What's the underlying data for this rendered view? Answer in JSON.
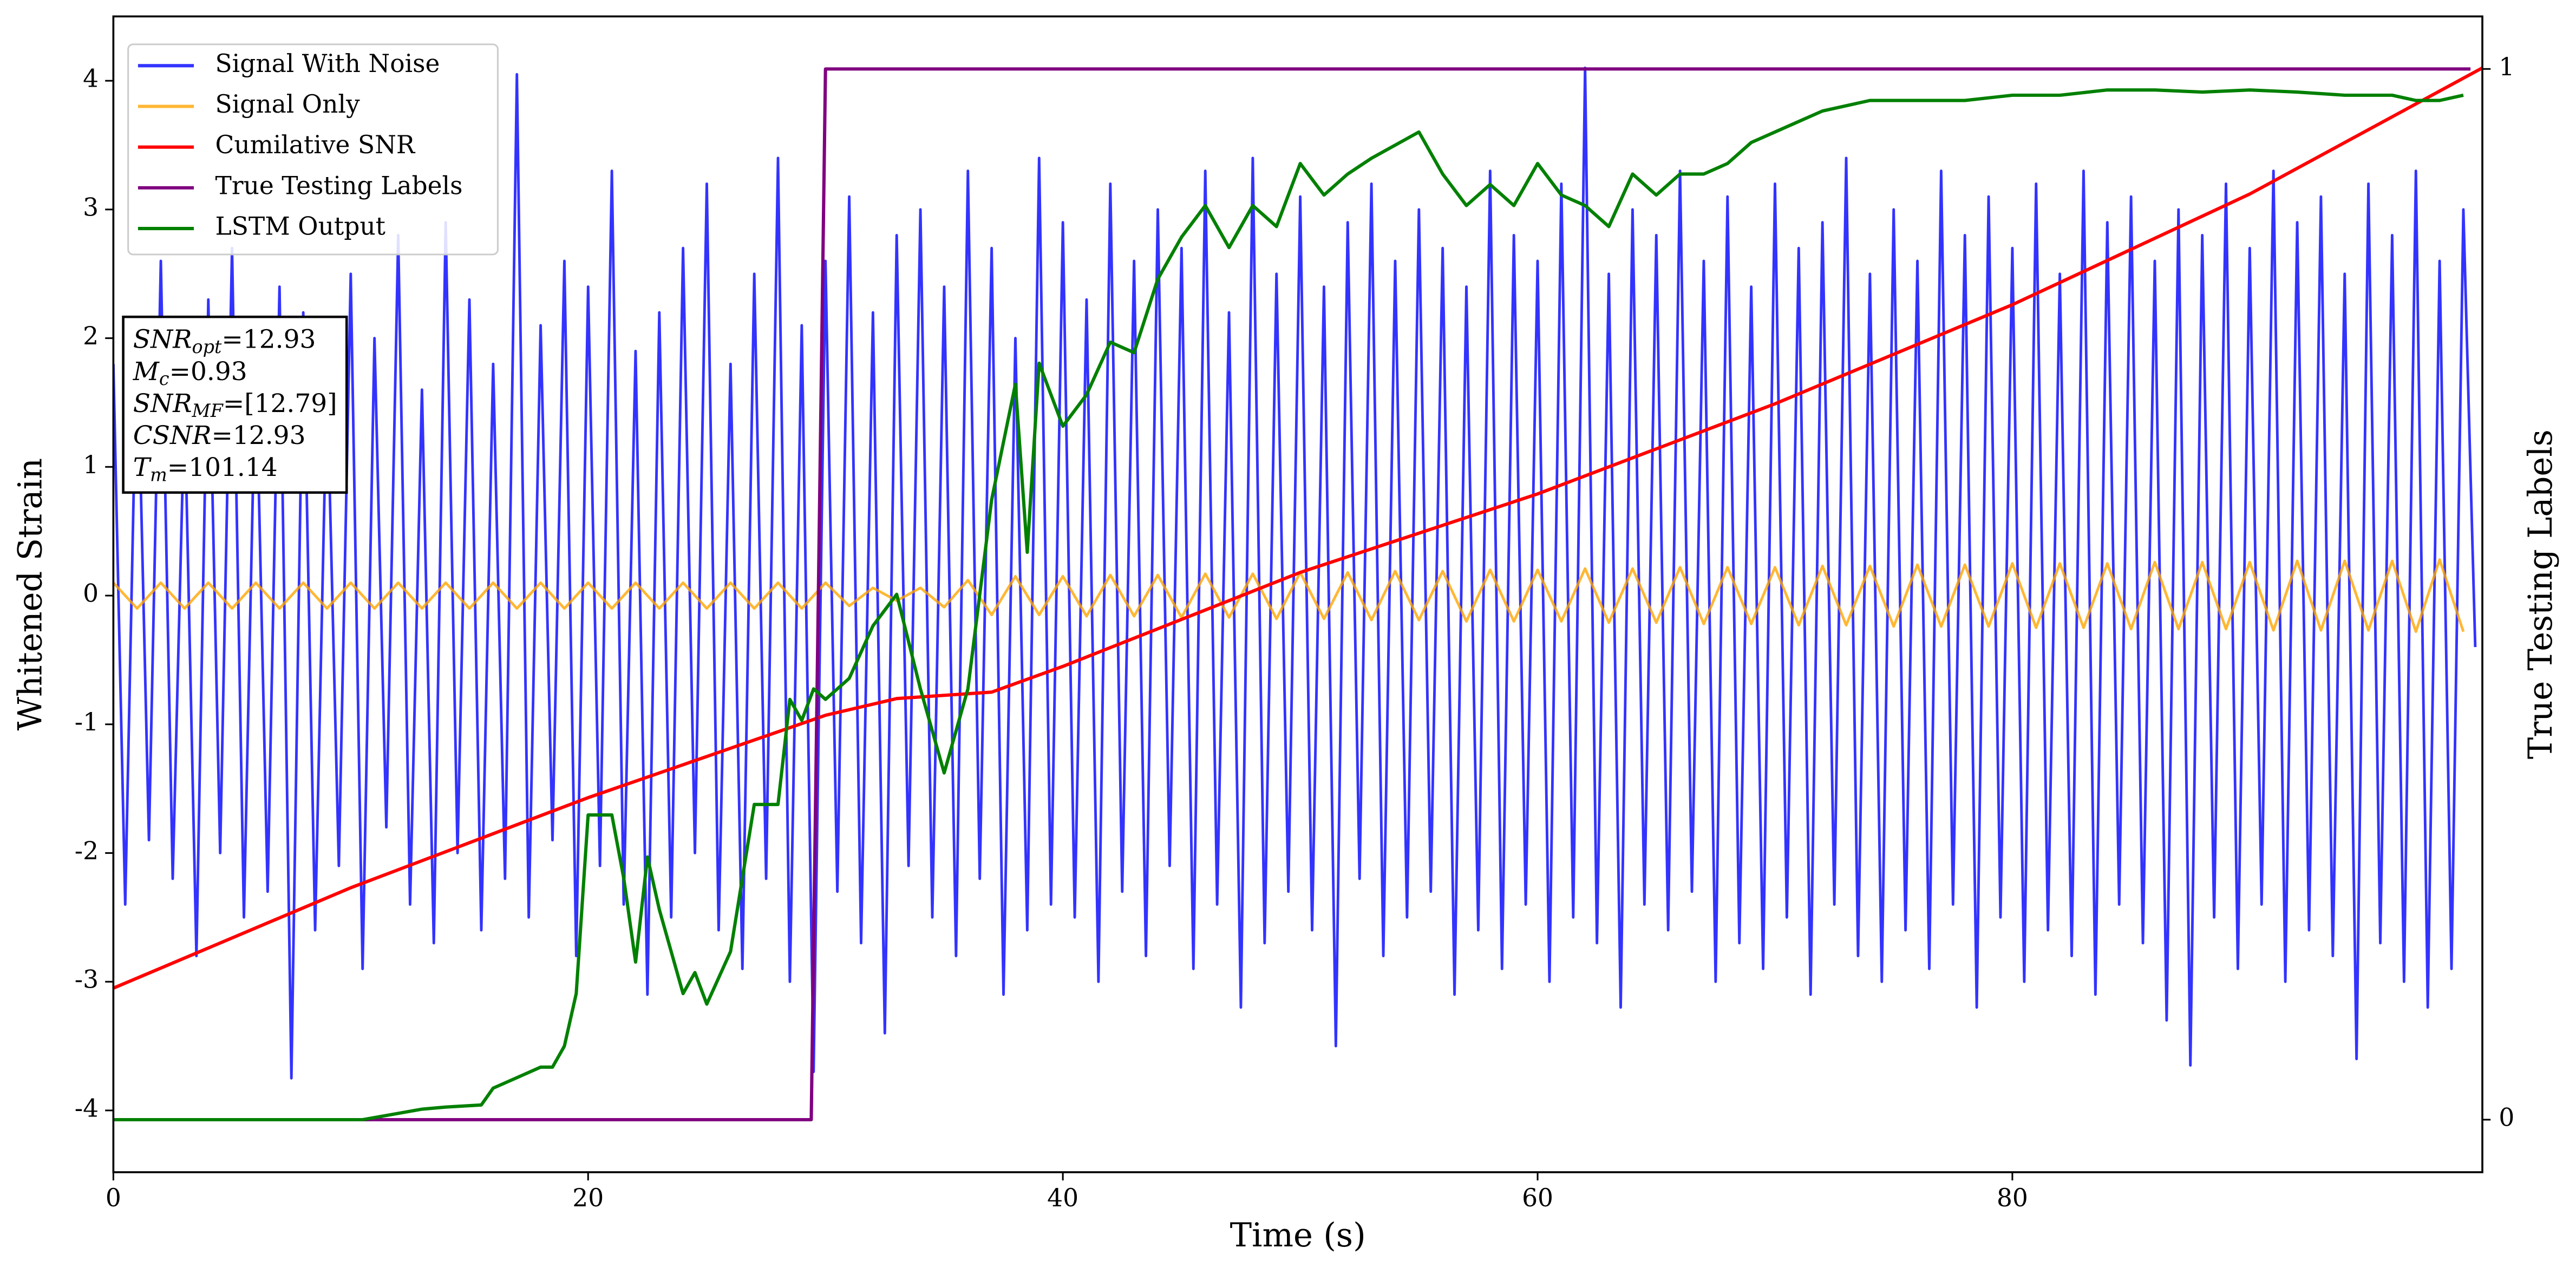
{
  "chart_data": {
    "type": "line",
    "x_label": "Time (s)",
    "y_label": "Whitened Strain",
    "y2_label": "True Testing Labels",
    "xlim": [
      0,
      99.8
    ],
    "xticks": [
      0,
      20,
      40,
      60,
      80
    ],
    "ylim": [
      -4.48,
      4.5
    ],
    "yticks": [
      -4,
      -3,
      -2,
      -1,
      0,
      1,
      2,
      3,
      4
    ],
    "y2lim": [
      -0.05,
      1.05
    ],
    "y2ticks": [
      0,
      1
    ],
    "legend": "upper left",
    "annotations": [
      {
        "main": "SNR",
        "sub": "opt",
        "rest": "=12.93"
      },
      {
        "main": "M",
        "sub": "c",
        "rest": "=0.93"
      },
      {
        "main": "SNR",
        "sub": "MF",
        "rest": "=[12.79]"
      },
      {
        "main": "CSNR",
        "sub": null,
        "rest": "=12.93"
      },
      {
        "main": "T",
        "sub": "m",
        "rest": "=101.14"
      }
    ],
    "series": [
      {
        "name": "Signal With Noise",
        "color": "#0000ff",
        "opacity": 0.8,
        "x": [
          0,
          0.5,
          1,
          1.5,
          2,
          2.5,
          3,
          3.5,
          4,
          4.5,
          5,
          5.5,
          6,
          6.5,
          7,
          7.5,
          8,
          8.5,
          9,
          9.5,
          10,
          10.5,
          11,
          11.5,
          12,
          12.5,
          13,
          13.5,
          14,
          14.5,
          15,
          15.5,
          16,
          16.5,
          17,
          17.5,
          18,
          18.5,
          19,
          19.5,
          20,
          20.5,
          21,
          21.5,
          22,
          22.5,
          23,
          23.5,
          24,
          24.5,
          25,
          25.5,
          26,
          26.5,
          27,
          27.5,
          28,
          28.5,
          29,
          29.5,
          30,
          30.5,
          31,
          31.5,
          32,
          32.5,
          33,
          33.5,
          34,
          34.5,
          35,
          35.5,
          36,
          36.5,
          37,
          37.5,
          38,
          38.5,
          39,
          39.5,
          40,
          40.5,
          41,
          41.5,
          42,
          42.5,
          43,
          43.5,
          44,
          44.5,
          45,
          45.5,
          46,
          46.5,
          47,
          47.5,
          48,
          48.5,
          49,
          49.5,
          50,
          50.5,
          51,
          51.5,
          52,
          52.5,
          53,
          53.5,
          54,
          54.5,
          55,
          55.5,
          56,
          56.5,
          57,
          57.5,
          58,
          58.5,
          59,
          59.5,
          60,
          60.5,
          61,
          61.5,
          62,
          62.5,
          63,
          63.5,
          64,
          64.5,
          65,
          65.5,
          66,
          66.5,
          67,
          67.5,
          68,
          68.5,
          69,
          69.5,
          70,
          70.5,
          71,
          71.5,
          72,
          72.5,
          73,
          73.5,
          74,
          74.5,
          75,
          75.5,
          76,
          76.5,
          77,
          77.5,
          78,
          78.5,
          79,
          79.5,
          80,
          80.5,
          81,
          81.5,
          82,
          82.5,
          83,
          83.5,
          84,
          84.5,
          85,
          85.5,
          86,
          86.5,
          87,
          87.5,
          88,
          88.5,
          89,
          89.5,
          90,
          90.5,
          91,
          91.5,
          92,
          92.5,
          93,
          93.5,
          94,
          94.5,
          95,
          95.5,
          96,
          96.5,
          97,
          97.5,
          98,
          98.5,
          99,
          99.5
        ],
        "values": [
          1.8,
          -2.4,
          2.1,
          -1.9,
          2.6,
          -2.2,
          1.5,
          -2.8,
          2.3,
          -2.0,
          2.7,
          -2.5,
          1.9,
          -2.3,
          2.4,
          -3.75,
          2.2,
          -2.6,
          1.7,
          -2.1,
          2.5,
          -2.9,
          2.0,
          -1.8,
          2.8,
          -2.4,
          1.6,
          -2.7,
          2.9,
          -2.0,
          2.3,
          -2.6,
          1.8,
          -2.2,
          4.05,
          -2.5,
          2.1,
          -1.9,
          2.6,
          -2.8,
          2.4,
          -2.1,
          3.3,
          -2.4,
          1.9,
          -3.1,
          2.2,
          -2.5,
          2.7,
          -2.0,
          3.2,
          -2.6,
          1.8,
          -2.9,
          2.5,
          -2.2,
          3.4,
          -3.0,
          2.1,
          -3.7,
          2.6,
          -2.3,
          3.1,
          -2.7,
          2.2,
          -3.4,
          2.8,
          -2.1,
          3.0,
          -2.5,
          2.4,
          -2.8,
          3.3,
          -2.2,
          2.7,
          -3.1,
          2.0,
          -2.6,
          3.4,
          -2.4,
          2.9,
          -2.5,
          2.3,
          -3.0,
          3.2,
          -2.3,
          2.6,
          -2.8,
          3.0,
          -2.1,
          2.7,
          -2.9,
          3.3,
          -2.4,
          2.2,
          -3.2,
          3.4,
          -2.7,
          2.5,
          -2.3,
          3.1,
          -2.6,
          2.4,
          -3.5,
          2.9,
          -2.2,
          3.2,
          -2.8,
          2.6,
          -2.5,
          3.0,
          -2.3,
          2.7,
          -3.1,
          2.4,
          -2.6,
          3.3,
          -2.9,
          2.8,
          -2.4,
          2.6,
          -3.0,
          3.2,
          -2.5,
          4.1,
          -2.7,
          2.5,
          -3.2,
          3.0,
          -2.4,
          2.8,
          -2.6,
          3.3,
          -2.3,
          2.6,
          -3.0,
          3.1,
          -2.7,
          2.4,
          -2.9,
          3.2,
          -2.5,
          2.7,
          -3.1,
          2.9,
          -2.4,
          3.4,
          -2.8,
          2.5,
          -3.0,
          3.0,
          -2.6,
          2.6,
          -2.9,
          3.3,
          -2.4,
          2.8,
          -3.2,
          3.1,
          -2.5,
          2.7,
          -3.0,
          3.2,
          -2.6,
          2.5,
          -2.8,
          3.3,
          -3.1,
          2.9,
          -2.4,
          3.1,
          -2.7,
          2.6,
          -3.3,
          3.0,
          -3.65,
          2.8,
          -2.5,
          3.2,
          -2.9,
          2.7,
          -2.4,
          3.3,
          -3.0,
          2.9,
          -2.6,
          3.1,
          -2.8,
          2.5,
          -3.6,
          3.2,
          -2.7,
          2.8,
          -3.0,
          3.3,
          -3.2,
          2.6,
          -2.9,
          3.0,
          -0.4
        ]
      },
      {
        "name": "Signal Only",
        "color": "#ffa500",
        "opacity": 0.8,
        "x": [
          0,
          1,
          2,
          3,
          4,
          5,
          6,
          7,
          8,
          9,
          10,
          11,
          12,
          13,
          14,
          15,
          16,
          17,
          18,
          19,
          20,
          21,
          22,
          23,
          24,
          25,
          26,
          27,
          28,
          29,
          30,
          31,
          32,
          33,
          34,
          35,
          36,
          37,
          38,
          39,
          40,
          41,
          42,
          43,
          44,
          45,
          46,
          47,
          48,
          49,
          50,
          51,
          52,
          53,
          54,
          55,
          56,
          57,
          58,
          59,
          60,
          61,
          62,
          63,
          64,
          65,
          66,
          67,
          68,
          69,
          70,
          71,
          72,
          73,
          74,
          75,
          76,
          77,
          78,
          79,
          80,
          81,
          82,
          83,
          84,
          85,
          86,
          87,
          88,
          89,
          90,
          91,
          92,
          93,
          94,
          95,
          96,
          97,
          98,
          99
        ],
        "values": [
          0.1,
          -0.1,
          0.1,
          -0.1,
          0.1,
          -0.1,
          0.1,
          -0.1,
          0.1,
          -0.1,
          0.1,
          -0.1,
          0.1,
          -0.1,
          0.1,
          -0.1,
          0.1,
          -0.1,
          0.1,
          -0.1,
          0.1,
          -0.1,
          0.1,
          -0.1,
          0.1,
          -0.1,
          0.1,
          -0.1,
          0.1,
          -0.1,
          0.1,
          -0.08,
          0.06,
          -0.04,
          0.06,
          -0.09,
          0.12,
          -0.15,
          0.15,
          -0.15,
          0.15,
          -0.16,
          0.16,
          -0.16,
          0.16,
          -0.17,
          0.17,
          -0.17,
          0.17,
          -0.18,
          0.18,
          -0.18,
          0.18,
          -0.19,
          0.19,
          -0.19,
          0.19,
          -0.2,
          0.2,
          -0.2,
          0.2,
          -0.2,
          0.21,
          -0.21,
          0.21,
          -0.21,
          0.22,
          -0.22,
          0.22,
          -0.22,
          0.22,
          -0.23,
          0.23,
          -0.23,
          0.23,
          -0.24,
          0.24,
          -0.24,
          0.24,
          -0.24,
          0.25,
          -0.25,
          0.25,
          -0.25,
          0.25,
          -0.26,
          0.26,
          -0.26,
          0.26,
          -0.26,
          0.26,
          -0.27,
          0.27,
          -0.27,
          0.27,
          -0.27,
          0.27,
          -0.28,
          0.28,
          -0.28
        ]
      },
      {
        "name": "Cumilative SNR",
        "color": "#ff0000",
        "opacity": 1,
        "x": [
          0,
          10,
          20,
          30,
          33,
          37,
          40,
          50,
          60,
          70,
          80,
          90,
          99.8
        ],
        "values": [
          -3.05,
          -2.27,
          -1.57,
          -0.93,
          -0.8,
          -0.75,
          -0.55,
          0.18,
          0.79,
          1.49,
          2.26,
          3.12,
          4.1
        ]
      },
      {
        "name": "True Testing Labels",
        "color": "#800080",
        "opacity": 1,
        "axis": "y2",
        "x": [
          0,
          29.4,
          30,
          99.3
        ],
        "values": [
          0,
          0,
          1,
          1
        ]
      },
      {
        "name": "LSTM Output",
        "color": "#008000",
        "opacity": 1,
        "axis": "y2",
        "x": [
          0,
          10.5,
          13,
          14,
          15.5,
          16,
          17,
          18,
          18.5,
          19,
          19.5,
          20,
          21,
          21.5,
          22,
          22.5,
          23,
          24,
          24.5,
          25,
          26,
          27,
          28,
          28.5,
          29,
          29.5,
          30,
          31,
          32,
          33,
          34,
          35,
          36,
          37,
          38,
          38.5,
          39,
          40,
          41,
          42,
          43,
          44,
          45,
          46,
          47,
          48,
          49,
          50,
          51,
          52,
          53,
          55,
          56,
          57,
          58,
          59,
          60,
          61,
          62,
          63,
          64,
          65,
          66,
          67,
          68,
          69,
          70,
          72,
          74,
          76,
          78,
          80,
          82,
          84,
          86,
          88,
          90,
          92,
          94,
          96,
          97,
          98,
          99
        ],
        "values": [
          0,
          0,
          0.01,
          0.012,
          0.014,
          0.03,
          0.04,
          0.05,
          0.05,
          0.07,
          0.12,
          0.29,
          0.29,
          0.23,
          0.15,
          0.25,
          0.2,
          0.12,
          0.14,
          0.11,
          0.16,
          0.3,
          0.3,
          0.4,
          0.38,
          0.41,
          0.4,
          0.42,
          0.47,
          0.5,
          0.41,
          0.33,
          0.41,
          0.59,
          0.7,
          0.54,
          0.72,
          0.66,
          0.69,
          0.74,
          0.73,
          0.8,
          0.84,
          0.87,
          0.83,
          0.87,
          0.85,
          0.91,
          0.88,
          0.9,
          0.915,
          0.94,
          0.9,
          0.87,
          0.89,
          0.87,
          0.91,
          0.88,
          0.87,
          0.85,
          0.9,
          0.88,
          0.9,
          0.9,
          0.91,
          0.93,
          0.94,
          0.96,
          0.97,
          0.97,
          0.97,
          0.975,
          0.975,
          0.98,
          0.98,
          0.978,
          0.98,
          0.978,
          0.975,
          0.975,
          0.97,
          0.97,
          0.975
        ]
      }
    ]
  }
}
